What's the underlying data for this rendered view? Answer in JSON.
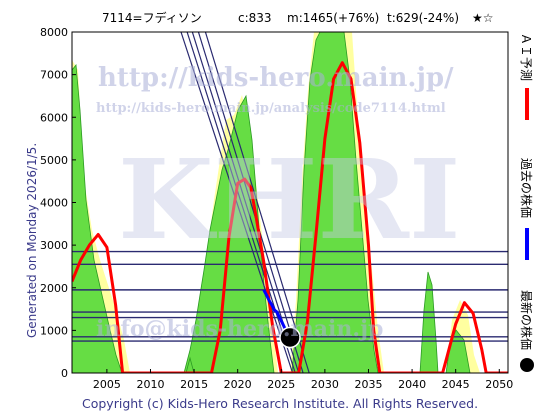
{
  "header": {
    "code": "7114=フディソン",
    "current": "c:833",
    "max": "m:1465(+76%)",
    "target": "t:629(-24%)",
    "stars": "★☆"
  },
  "watermark": {
    "url": "http://kids-hero.main.jp/",
    "analysis_url": "http://kids-hero.main.jp/analysis/code7114.html",
    "big": "KHRI",
    "email": "info@kids-hero.main.jp"
  },
  "generated_label": "Generated on Monday 2026/1/5.",
  "copyright": "Copyright (c) Kids-Hero Research Institute. All Rights Reserved.",
  "legend": {
    "ai_forecast": "ＡＩ予測",
    "past_price": "過去の株価",
    "latest_price": "最新の株価"
  },
  "colors": {
    "ai_line": "#ff0000",
    "past_line": "#0000ff",
    "latest_marker": "#000000",
    "green_fill": "#66dd44",
    "yellow_fill": "#ffffa0",
    "trend_lines": "#2a2a70",
    "hlines": "#2a2a70"
  },
  "chart_data": {
    "type": "line",
    "xlim": [
      2001,
      2051
    ],
    "ylim": [
      0,
      8000
    ],
    "x_ticks": [
      2005,
      2010,
      2015,
      2020,
      2025,
      2030,
      2035,
      2040,
      2045,
      2050
    ],
    "y_ticks": [
      0,
      1000,
      2000,
      3000,
      4000,
      5000,
      6000,
      7000,
      8000
    ],
    "grid": false,
    "legend_position": "right-vertical",
    "horizontal_levels": [
      750,
      850,
      1300,
      1430,
      1950,
      2550,
      2850
    ],
    "trend_lines": [
      {
        "x": [
          2013.5,
          2026.3
        ],
        "y": [
          8000,
          0
        ]
      },
      {
        "x": [
          2014.2,
          2026.6
        ],
        "y": [
          8000,
          0
        ]
      },
      {
        "x": [
          2014.8,
          2027.0
        ],
        "y": [
          8000,
          0
        ]
      },
      {
        "x": [
          2015.5,
          2027.5
        ],
        "y": [
          8000,
          0
        ]
      },
      {
        "x": [
          2016.3,
          2028.2
        ],
        "y": [
          8000,
          0
        ]
      }
    ],
    "series": [
      {
        "name": "ＡＩ予測",
        "x": [
          2001,
          2002,
          2003,
          2004,
          2005,
          2006,
          2006.8,
          2008,
          2011,
          2014,
          2017,
          2018,
          2019,
          2020,
          2020.8,
          2021.5,
          2022,
          2023,
          2024,
          2025,
          2026,
          2027,
          2028,
          2029,
          2030,
          2031,
          2032,
          2033,
          2034,
          2035,
          2035.6,
          2036.3,
          2040,
          2043.5,
          2044,
          2045,
          2046,
          2047,
          2048,
          2048.5,
          2051
        ],
        "y": [
          2150,
          2650,
          3000,
          3250,
          2950,
          1600,
          0,
          0,
          0,
          0,
          0,
          1000,
          3200,
          4450,
          4550,
          4350,
          3800,
          2600,
          1100,
          0,
          0,
          0,
          1200,
          3300,
          5500,
          6900,
          7280,
          6900,
          5400,
          3000,
          1000,
          0,
          0,
          0,
          380,
          1150,
          1650,
          1400,
          550,
          0,
          0
        ]
      },
      {
        "name": "過去の株価",
        "x": [
          2023.0,
          2023.3,
          2023.6,
          2023.9,
          2024.2,
          2024.5,
          2024.8,
          2025.1,
          2025.4,
          2025.7,
          2026.0
        ],
        "y": [
          1950,
          1830,
          1700,
          1600,
          1480,
          1430,
          1300,
          1180,
          1050,
          950,
          833
        ]
      },
      {
        "name": "最新の株価",
        "x": [
          2026.0
        ],
        "y": [
          833
        ]
      }
    ]
  }
}
